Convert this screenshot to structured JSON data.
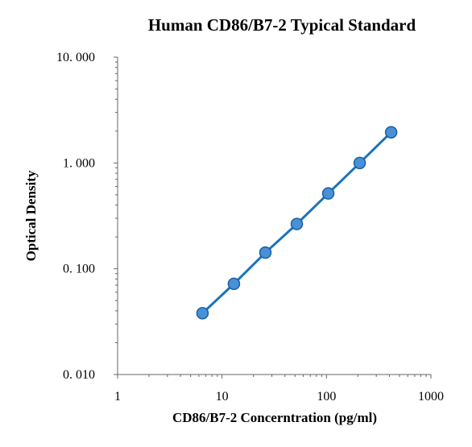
{
  "chart_data": {
    "type": "scatter",
    "title": "Human CD86/B7-2 Typical Standard",
    "xlabel": "CD86/B7-2 Concerntration (pg/ml)",
    "ylabel": "Optical Density",
    "x_scale": "log",
    "y_scale": "log",
    "xlim": [
      1,
      1000
    ],
    "ylim": [
      0.01,
      10
    ],
    "x_ticks": [
      1,
      10,
      100,
      1000
    ],
    "x_tick_labels": [
      "1",
      "10",
      "100",
      "1000"
    ],
    "y_ticks": [
      0.01,
      0.1,
      1,
      10
    ],
    "y_tick_labels": [
      "0. 010",
      "0. 100",
      "1. 000",
      "10. 000"
    ],
    "grid": false,
    "series": [
      {
        "x": [
          6.5,
          13,
          26,
          52,
          104,
          208,
          416
        ],
        "y": [
          0.038,
          0.072,
          0.142,
          0.265,
          0.515,
          1.0,
          1.95
        ],
        "marker": "circle",
        "fit_line": true
      }
    ],
    "colors": {
      "line": "#1a73bd",
      "marker_fill": "#4a90d6",
      "marker_stroke": "#1a5fa3"
    }
  }
}
